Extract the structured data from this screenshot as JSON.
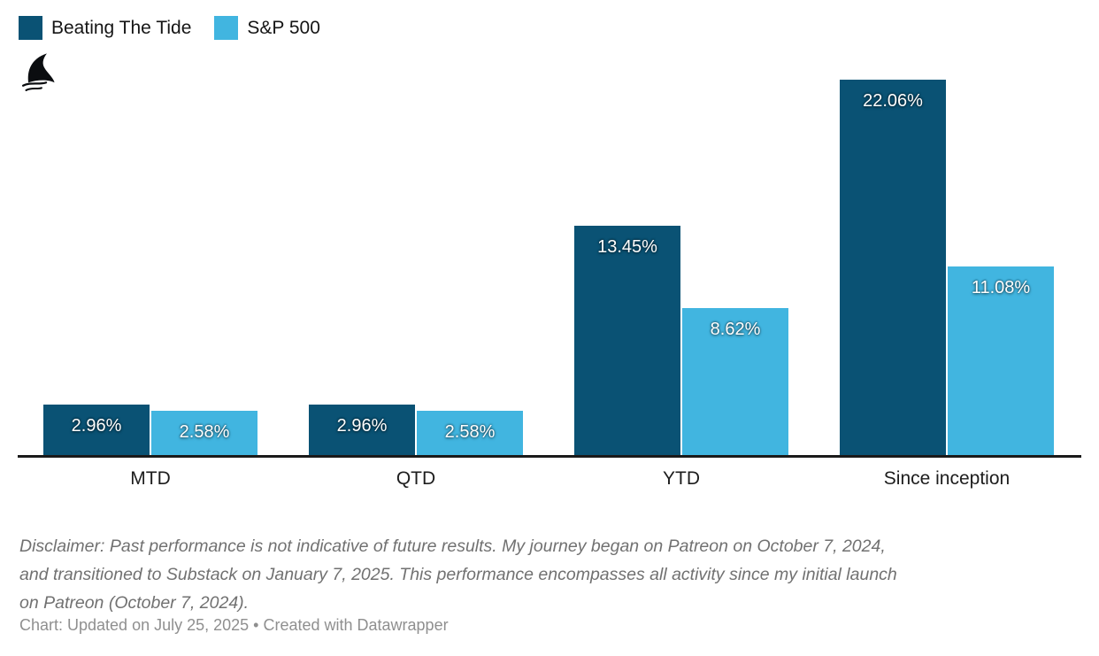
{
  "chart_data": {
    "type": "bar",
    "title": "",
    "categories": [
      "MTD",
      "QTD",
      "YTD",
      "Since inception"
    ],
    "series": [
      {
        "name": "Beating The Tide",
        "color": "#0a5274",
        "values": [
          2.96,
          2.96,
          13.45,
          22.06
        ],
        "labels": [
          "2.96%",
          "2.96%",
          "13.45%",
          "22.06%"
        ]
      },
      {
        "name": "S&P 500",
        "color": "#41b5e0",
        "values": [
          2.58,
          2.58,
          8.62,
          11.08
        ],
        "labels": [
          "2.58%",
          "2.58%",
          "8.62%",
          "11.08%"
        ]
      }
    ],
    "xlabel": "",
    "ylabel": "",
    "ylim": [
      0,
      22.06
    ],
    "grid": false,
    "legend_position": "top-left",
    "value_label_position": "inside-top",
    "axis_line_color": "#1a1a1a"
  },
  "legend": {
    "items": [
      {
        "label": "Beating The Tide",
        "color": "#0a5274"
      },
      {
        "label": "S&P 500",
        "color": "#41b5e0"
      }
    ]
  },
  "logo": {
    "name": "shark-fin",
    "color": "#0b0d10"
  },
  "disclaimer": {
    "lines": [
      "Disclaimer: Past performance is not indicative of future results. My journey began on Patreon on October 7, 2024,",
      "and transitioned to Substack on January 7, 2025. This performance encompasses all activity since my initial launch",
      "on Patreon (October 7, 2024)."
    ]
  },
  "footer": {
    "text": "Chart: Updated on July 25, 2025 • Created with Datawrapper"
  }
}
